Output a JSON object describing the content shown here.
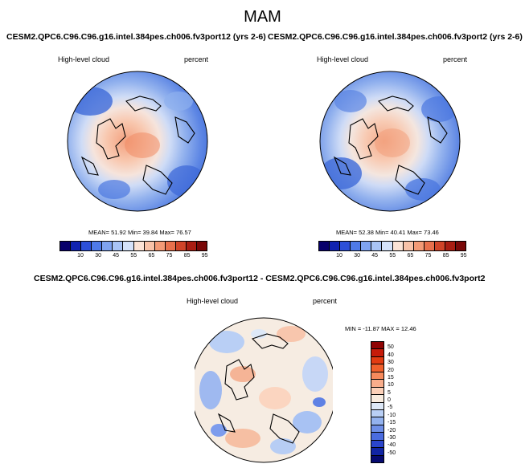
{
  "figure": {
    "title": "MAM"
  },
  "panels": [
    {
      "title": "CESM2.QPC6.C96.C96.g16.intel.384pes.ch006.fv3port12 (yrs 2-6)",
      "variable": "High-level cloud",
      "units": "percent",
      "stats": "MEAN=  51.92  Min=  39.84  Max=  76.57"
    },
    {
      "title": "CESM2.QPC6.C96.C96.g16.intel.384pes.ch006.fv3port2 (yrs 2-6)",
      "variable": "High-level cloud",
      "units": "percent",
      "stats": "MEAN=  52.38  Min=  40.41  Max=  73.46"
    },
    {
      "title": "CESM2.QPC6.C96.C96.g16.intel.384pes.ch006.fv3port12 - CESM2.QPC6.C96.C96.g16.intel.384pes.ch006.fv3port2",
      "variable": "High-level cloud",
      "units": "percent",
      "stats": "MIN = -11.87 MAX =  12.46"
    }
  ],
  "abs_colorbar": {
    "ticks": [
      "10",
      "30",
      "45",
      "55",
      "65",
      "75",
      "85",
      "95"
    ],
    "colors": [
      "#08006b",
      "#1023b0",
      "#2c4fd8",
      "#4f7ae8",
      "#7fa3f0",
      "#a9c4f5",
      "#d4e2fa",
      "#fbe3d6",
      "#f8c2a8",
      "#f39a76",
      "#e8704c",
      "#d04428",
      "#a91d12",
      "#7a0808"
    ]
  },
  "diff_colorbar": {
    "ticks": [
      "50",
      "40",
      "30",
      "20",
      "15",
      "10",
      "5",
      "0",
      "-5",
      "-10",
      "-15",
      "-20",
      "-30",
      "-40",
      "-50"
    ],
    "colors": [
      "#8f0303",
      "#c61b0a",
      "#e23b12",
      "#f0602c",
      "#f68a5c",
      "#f8ad8b",
      "#fbd0b8",
      "#f8ecdf",
      "#dde8f7",
      "#b9cff5",
      "#93b2ef",
      "#6e8fe8",
      "#4a6ce0",
      "#2a45cc",
      "#1125a4",
      "#060a70"
    ]
  }
}
